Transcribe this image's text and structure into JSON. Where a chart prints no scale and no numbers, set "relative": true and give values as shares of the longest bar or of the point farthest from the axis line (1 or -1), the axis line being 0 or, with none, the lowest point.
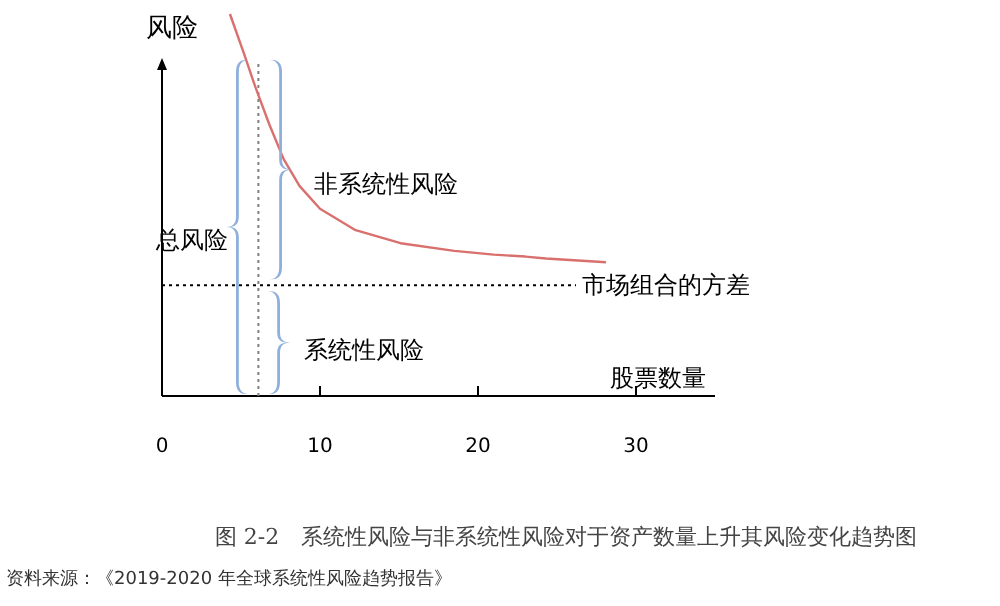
{
  "chart_data": {
    "type": "line",
    "relative": true,
    "title": "图 2-2　系统性风险与非系统性风险对于资产数量上升其风险变化趋势图",
    "xlabel": "股票数量",
    "ylabel": "风险",
    "xlim": [
      0,
      35
    ],
    "xticks": [
      0,
      10,
      20,
      30
    ],
    "grid": false,
    "marker": "none",
    "line_style": "solid",
    "series": [
      {
        "color": "#d9706e",
        "x": [
          4.3,
          5.2,
          5.9,
          6.8,
          7.7,
          8.7,
          10,
          12.2,
          15.1,
          18.5,
          21,
          23,
          24.3,
          28.1
        ],
        "values": [
          1.0,
          0.895,
          0.81,
          0.71,
          0.62,
          0.55,
          0.49,
          0.435,
          0.4,
          0.38,
          0.37,
          0.365,
          0.36,
          0.35
        ]
      }
    ],
    "ref_lines": [
      {
        "axis": "y",
        "value": 0.29,
        "label": "市场组合的方差",
        "color": "#000000",
        "line_style": "dotted"
      },
      {
        "axis": "x",
        "value": 6.1,
        "color": "#808080",
        "line_style": "dotted"
      }
    ],
    "annotations": [
      "总风险",
      "非系统性风险",
      "系统性风险",
      "资料来源：《2019-2020 年全球系统性风险趋势报告》"
    ]
  }
}
